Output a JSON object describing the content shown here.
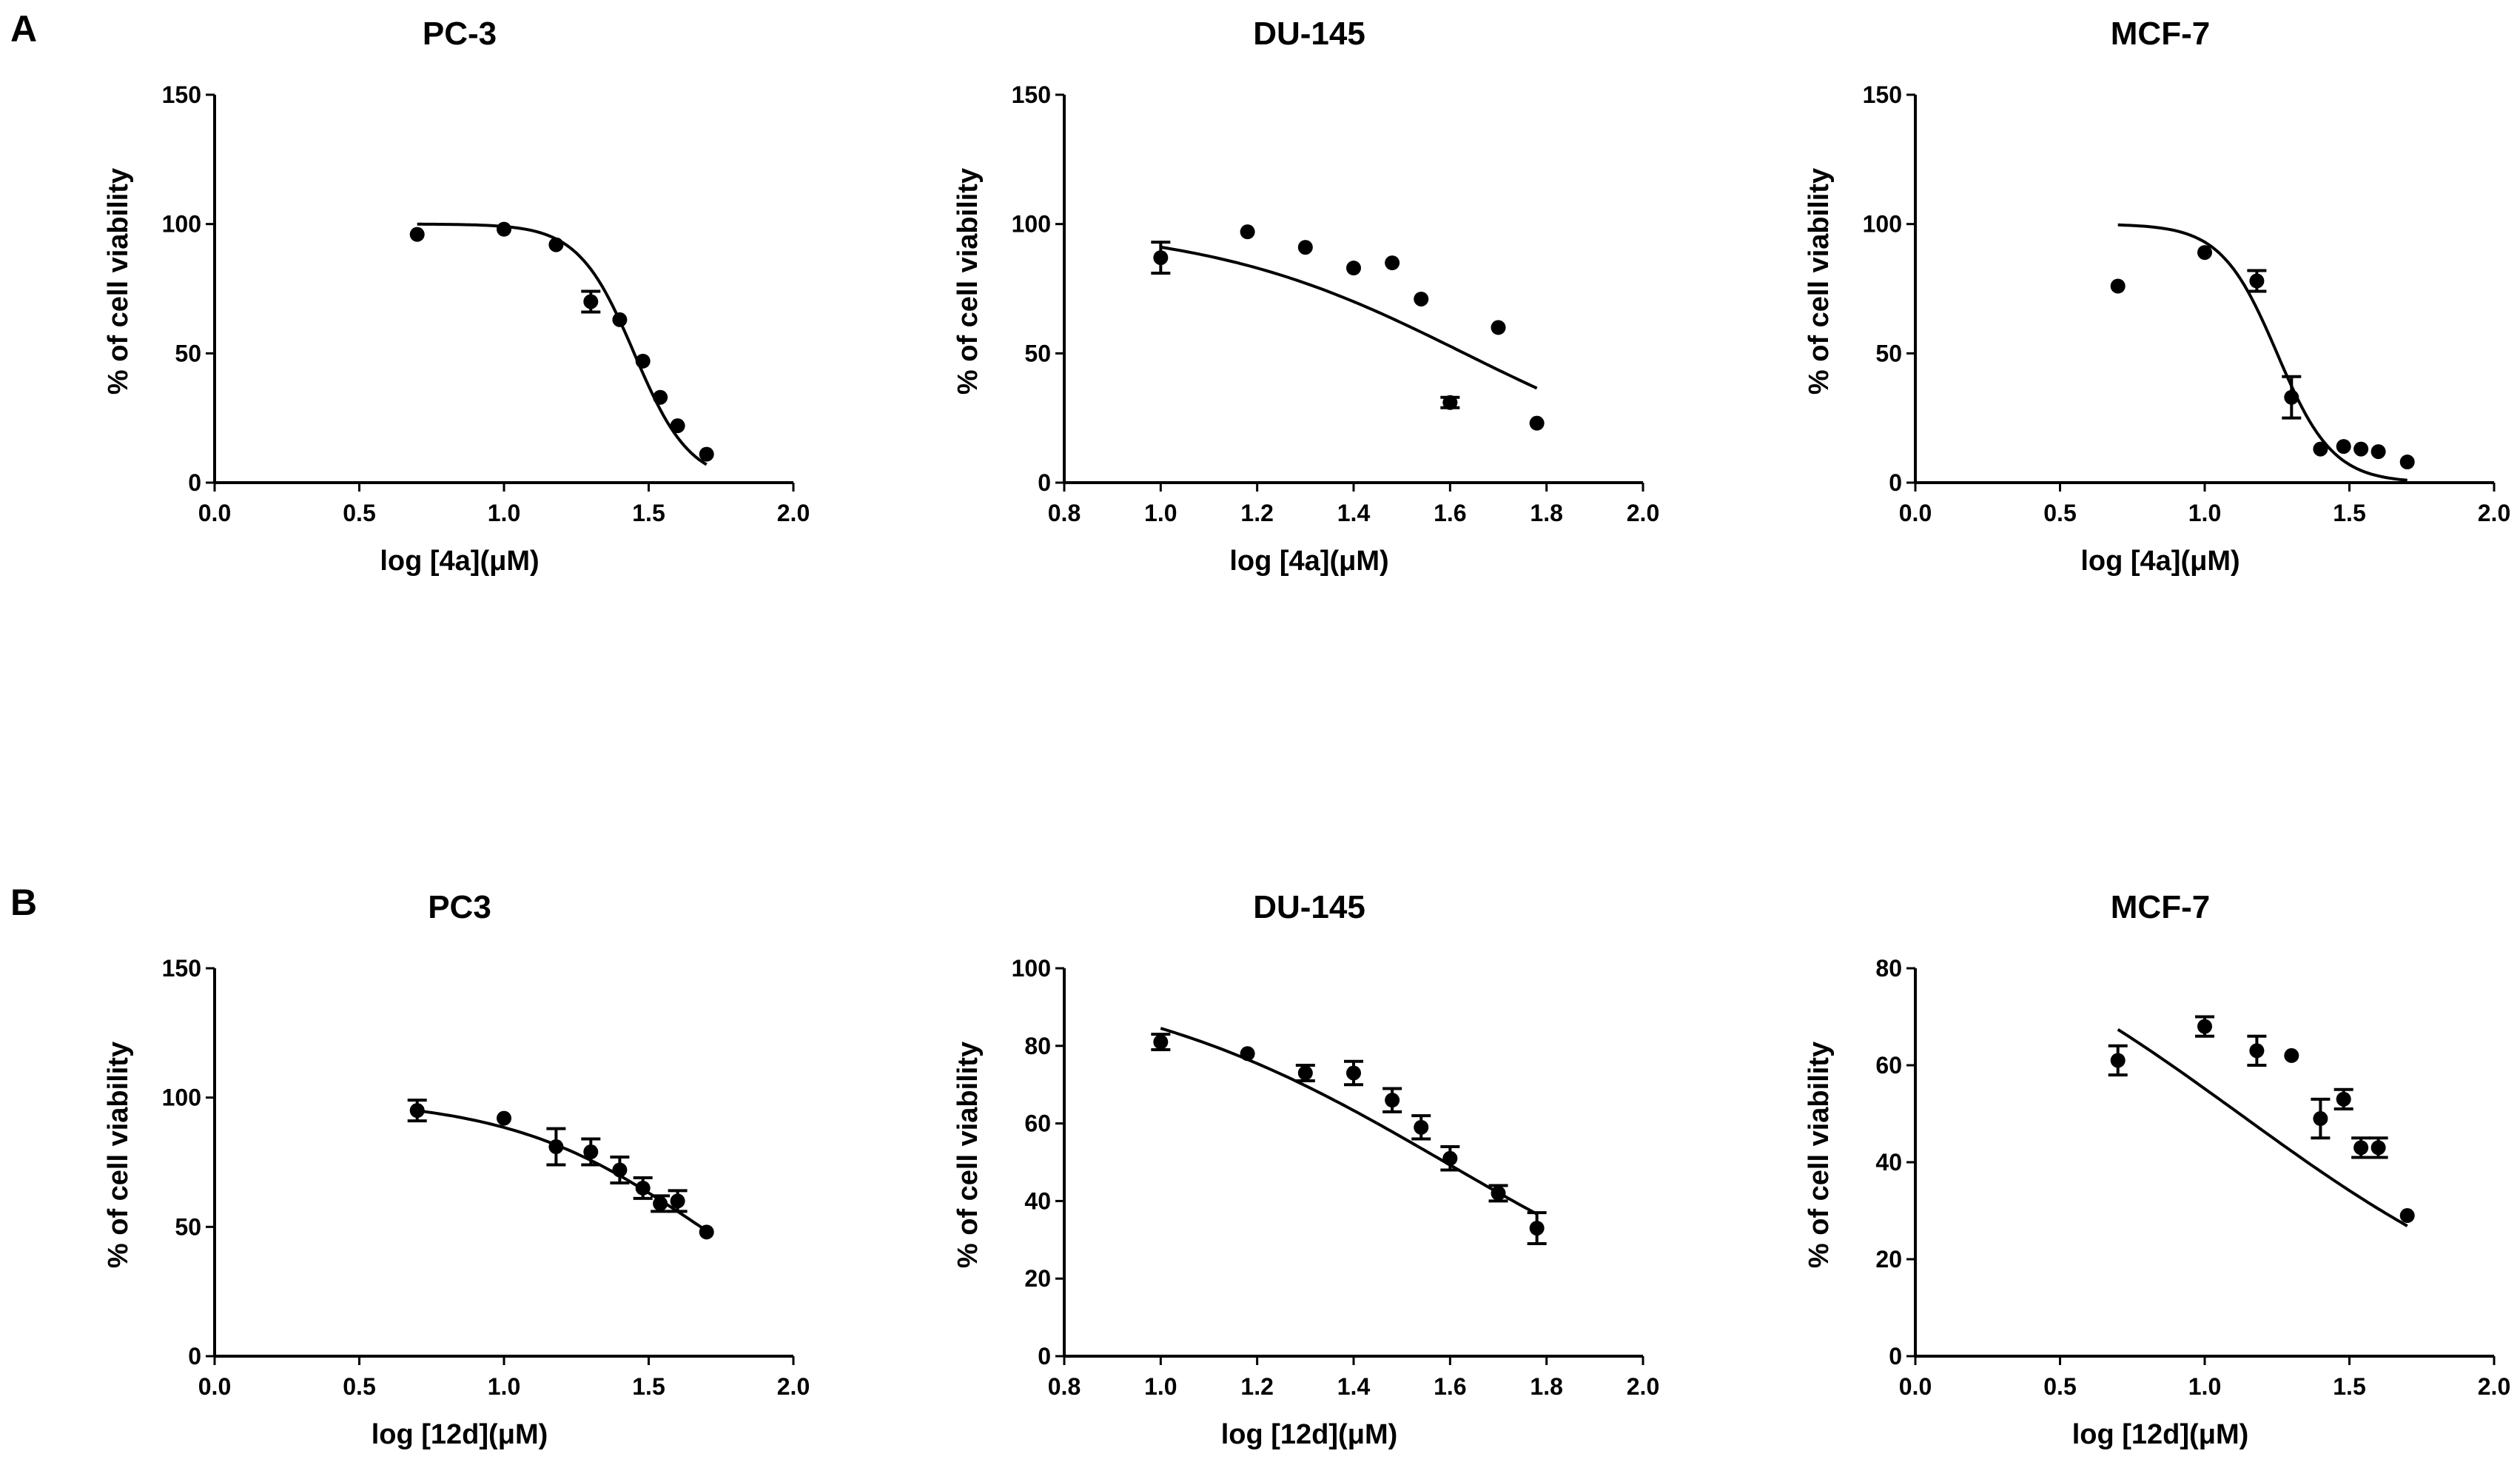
{
  "figure": {
    "panel_labels": [
      "A",
      "B"
    ]
  },
  "chart_data": [
    {
      "type": "scatter",
      "panel": "A",
      "title": "PC-3",
      "xlabel": "log [4a](μM)",
      "ylabel": "% of cell viability",
      "xlim": [
        0.0,
        2.0
      ],
      "ylim": [
        0,
        150
      ],
      "xticks": [
        "0.0",
        "0.5",
        "1.0",
        "1.5",
        "2.0"
      ],
      "yticks": [
        "0",
        "50",
        "100",
        "150"
      ],
      "x": [
        0.7,
        1.0,
        1.18,
        1.3,
        1.4,
        1.48,
        1.54,
        1.6,
        1.7
      ],
      "y": [
        96,
        98,
        92,
        70,
        63,
        47,
        33,
        22,
        11
      ],
      "err": [
        0,
        0,
        0,
        4,
        0,
        0,
        0,
        0,
        0
      ],
      "fit": {
        "model": "sigmoid",
        "top": 100,
        "bottom": 0,
        "logIC50": 1.45,
        "hill": 4.5,
        "x_range": [
          0.7,
          1.7
        ]
      }
    },
    {
      "type": "scatter",
      "panel": "A",
      "title": "DU-145",
      "xlabel": "log [4a](μM)",
      "ylabel": "% of cell viability",
      "xlim": [
        0.8,
        2.0
      ],
      "ylim": [
        0,
        150
      ],
      "xticks": [
        "0.8",
        "1.0",
        "1.2",
        "1.4",
        "1.6",
        "1.8",
        "2.0"
      ],
      "yticks": [
        "0",
        "50",
        "100",
        "150"
      ],
      "x": [
        1.0,
        1.18,
        1.3,
        1.4,
        1.48,
        1.54,
        1.6,
        1.7,
        1.78
      ],
      "y": [
        87,
        97,
        91,
        83,
        85,
        71,
        31,
        60,
        23
      ],
      "err": [
        6,
        0,
        0,
        0,
        0,
        0,
        2,
        0,
        0
      ],
      "fit": {
        "model": "sigmoid",
        "top": 100,
        "bottom": 0,
        "logIC50": 1.63,
        "hill": 1.6,
        "x_range": [
          1.0,
          1.78
        ]
      }
    },
    {
      "type": "scatter",
      "panel": "A",
      "title": "MCF-7",
      "xlabel": "log [4a](μM)",
      "ylabel": "% of cell viability",
      "xlim": [
        0.0,
        2.0
      ],
      "ylim": [
        0,
        150
      ],
      "xticks": [
        "0.0",
        "0.5",
        "1.0",
        "1.5",
        "2.0"
      ],
      "yticks": [
        "0",
        "50",
        "100",
        "150"
      ],
      "x": [
        0.7,
        1.0,
        1.18,
        1.3,
        1.4,
        1.48,
        1.54,
        1.6,
        1.7
      ],
      "y": [
        76,
        89,
        78,
        33,
        13,
        14,
        13,
        12,
        8
      ],
      "err": [
        0,
        0,
        4,
        8,
        0,
        0,
        0,
        0,
        0
      ],
      "fit": {
        "model": "sigmoid",
        "top": 100,
        "bottom": 0,
        "logIC50": 1.25,
        "hill": 4.5,
        "x_range": [
          0.7,
          1.7
        ]
      }
    },
    {
      "type": "scatter",
      "panel": "B",
      "title": "PC3",
      "xlabel": "log [12d](μM)",
      "ylabel": "% of cell viability",
      "xlim": [
        0.0,
        2.0
      ],
      "ylim": [
        0,
        150
      ],
      "xticks": [
        "0.0",
        "0.5",
        "1.0",
        "1.5",
        "2.0"
      ],
      "yticks": [
        "0",
        "50",
        "100",
        "150"
      ],
      "x": [
        0.7,
        1.0,
        1.18,
        1.3,
        1.4,
        1.48,
        1.54,
        1.6,
        1.7
      ],
      "y": [
        95,
        92,
        81,
        79,
        72,
        65,
        59,
        60,
        48
      ],
      "err": [
        4,
        0,
        7,
        5,
        5,
        4,
        3,
        4,
        0
      ],
      "fit": {
        "model": "sigmoid",
        "top": 100,
        "bottom": 0,
        "logIC50": 1.68,
        "hill": 1.3,
        "x_range": [
          0.7,
          1.7
        ]
      }
    },
    {
      "type": "scatter",
      "panel": "B",
      "title": "DU-145",
      "xlabel": "log [12d](μM)",
      "ylabel": "% of cell viability",
      "xlim": [
        0.8,
        2.0
      ],
      "ylim": [
        0,
        100
      ],
      "xticks": [
        "0.8",
        "1.0",
        "1.2",
        "1.4",
        "1.6",
        "1.8",
        "2.0"
      ],
      "yticks": [
        "0",
        "20",
        "40",
        "60",
        "80",
        "100"
      ],
      "x": [
        1.0,
        1.18,
        1.3,
        1.4,
        1.48,
        1.54,
        1.6,
        1.7,
        1.78
      ],
      "y": [
        81,
        78,
        73,
        73,
        66,
        59,
        51,
        42,
        33
      ],
      "err": [
        2,
        0,
        2,
        3,
        3,
        3,
        3,
        2,
        4
      ],
      "fit": {
        "model": "sigmoid",
        "top": 100,
        "bottom": 0,
        "logIC50": 1.59,
        "hill": 1.25,
        "x_range": [
          1.0,
          1.78
        ]
      }
    },
    {
      "type": "scatter",
      "panel": "B",
      "title": "MCF-7",
      "xlabel": "log [12d](μM)",
      "ylabel": "% of cell viability",
      "xlim": [
        0.0,
        2.0
      ],
      "ylim": [
        0,
        80
      ],
      "xticks": [
        "0.0",
        "0.5",
        "1.0",
        "1.5",
        "2.0"
      ],
      "yticks": [
        "0",
        "20",
        "40",
        "60",
        "80"
      ],
      "x": [
        0.7,
        1.0,
        1.18,
        1.3,
        1.4,
        1.48,
        1.54,
        1.6,
        1.7
      ],
      "y": [
        61,
        68,
        63,
        62,
        49,
        53,
        43,
        43,
        29
      ],
      "err": [
        3,
        2,
        3,
        0,
        4,
        2,
        2,
        2,
        0
      ],
      "fit": {
        "model": "sigmoid",
        "top": 100,
        "bottom": 0,
        "logIC50": 1.12,
        "hill": 0.75,
        "x_range": [
          0.7,
          1.7
        ]
      }
    }
  ]
}
